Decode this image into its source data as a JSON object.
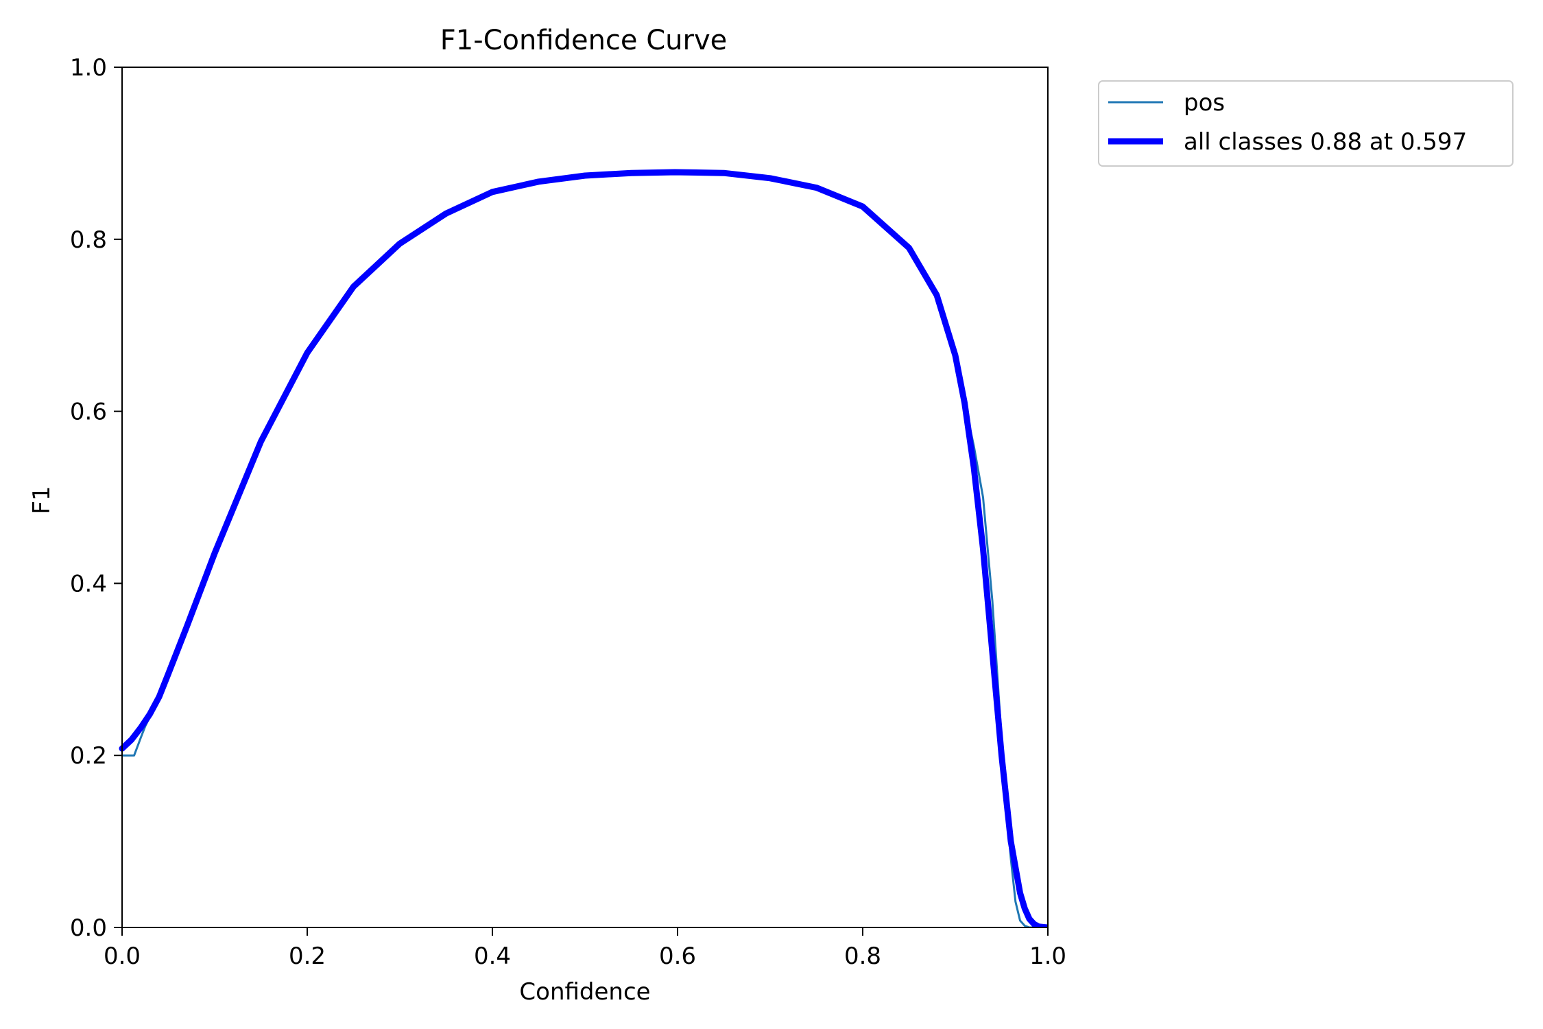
{
  "chart_data": {
    "type": "line",
    "title": "F1-Confidence Curve",
    "xlabel": "Confidence",
    "ylabel": "F1",
    "xlim": [
      0,
      1
    ],
    "ylim": [
      0,
      1
    ],
    "grid": false,
    "legend_position": "outside top-right",
    "x_ticks": [
      "0.0",
      "0.2",
      "0.4",
      "0.6",
      "0.8",
      "1.0"
    ],
    "y_ticks": [
      "0.0",
      "0.2",
      "0.4",
      "0.6",
      "0.8",
      "1.0"
    ],
    "series": [
      {
        "name": "pos",
        "color": "#1f77b4",
        "style": "thin",
        "x": [
          0.0,
          0.013,
          0.02,
          0.025,
          0.03,
          0.04,
          0.05,
          0.07,
          0.1,
          0.15,
          0.2,
          0.25,
          0.3,
          0.35,
          0.4,
          0.45,
          0.5,
          0.55,
          0.6,
          0.65,
          0.7,
          0.75,
          0.8,
          0.85,
          0.88,
          0.9,
          0.92,
          0.93,
          0.94,
          0.95,
          0.955,
          0.96,
          0.965,
          0.97,
          0.975,
          0.98,
          0.99,
          1.0
        ],
        "y": [
          0.2,
          0.2,
          0.22,
          0.234,
          0.245,
          0.265,
          0.29,
          0.345,
          0.43,
          0.565,
          0.67,
          0.745,
          0.795,
          0.83,
          0.855,
          0.867,
          0.874,
          0.877,
          0.878,
          0.877,
          0.872,
          0.862,
          0.84,
          0.79,
          0.73,
          0.66,
          0.56,
          0.5,
          0.38,
          0.22,
          0.14,
          0.08,
          0.03,
          0.008,
          0.002,
          0.0,
          0.0,
          0.0
        ]
      },
      {
        "name": "all classes 0.88 at 0.597",
        "color": "#0000ff",
        "style": "thick",
        "x": [
          0.0,
          0.01,
          0.02,
          0.03,
          0.04,
          0.05,
          0.07,
          0.1,
          0.15,
          0.2,
          0.25,
          0.3,
          0.35,
          0.4,
          0.45,
          0.5,
          0.55,
          0.597,
          0.65,
          0.7,
          0.75,
          0.8,
          0.85,
          0.88,
          0.9,
          0.91,
          0.92,
          0.93,
          0.94,
          0.95,
          0.96,
          0.97,
          0.975,
          0.98,
          0.985,
          0.99,
          1.0
        ],
        "y": [
          0.208,
          0.218,
          0.232,
          0.248,
          0.268,
          0.295,
          0.35,
          0.435,
          0.565,
          0.668,
          0.745,
          0.795,
          0.83,
          0.855,
          0.867,
          0.874,
          0.877,
          0.878,
          0.877,
          0.871,
          0.86,
          0.838,
          0.79,
          0.735,
          0.665,
          0.61,
          0.535,
          0.44,
          0.32,
          0.2,
          0.1,
          0.04,
          0.022,
          0.01,
          0.004,
          0.001,
          0.0
        ]
      }
    ]
  }
}
